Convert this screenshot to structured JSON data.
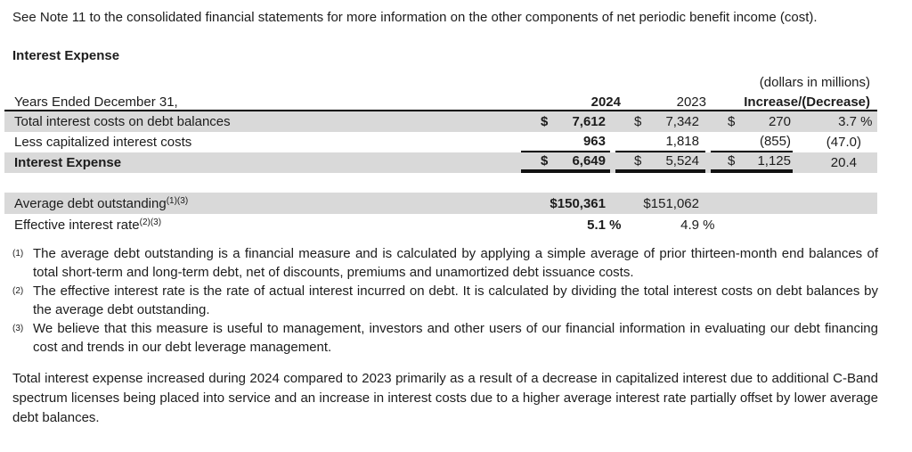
{
  "intro": {
    "text": "See Note 11 to the consolidated financial statements for more information on the other components of net periodic benefit income (cost)."
  },
  "section": {
    "heading": "Interest Expense"
  },
  "table": {
    "units_note": "(dollars in millions)",
    "header": {
      "label": "Years Ended December 31,",
      "y2024": "2024",
      "y2023": "2023",
      "change": "Increase/(Decrease)"
    },
    "rows": [
      {
        "label": "Total interest costs on debt balances",
        "s2024": "$",
        "v2024": "7,612",
        "s2023": "$",
        "v2023": "7,342",
        "schg": "$",
        "vchg": "270",
        "pct": "3.7",
        "pct_sfx": " %"
      },
      {
        "label": "Less capitalized interest costs",
        "s2024": "",
        "v2024": "963",
        "s2023": "",
        "v2023": "1,818",
        "schg": "",
        "vchg": "(855)",
        "pct": "(47.0",
        "pct_sfx": ")"
      },
      {
        "label": "Interest Expense",
        "s2024": "$",
        "v2024": "6,649",
        "s2023": "$",
        "v2023": "5,524",
        "schg": "$",
        "vchg": "1,125",
        "pct": "20.4",
        "pct_sfx": ""
      }
    ],
    "memo_rows": [
      {
        "label": "Average debt outstanding",
        "sup": "(1)(3)",
        "v2024": "$150,361",
        "v2024_sfx": "",
        "v2023": "$151,062",
        "v2023_sfx": ""
      },
      {
        "label": "Effective interest rate",
        "sup": "(2)(3)",
        "v2024": "5.1",
        "v2024_sfx": " %",
        "v2023": "4.9",
        "v2023_sfx": " %"
      }
    ]
  },
  "footnotes": [
    {
      "marker": "(1)",
      "text": "The average debt outstanding is a financial measure and is calculated by applying a simple average of prior thirteen-month end balances of total short-term and long-term debt, net of discounts, premiums and unamortized debt issuance costs."
    },
    {
      "marker": "(2)",
      "text": "The effective interest rate is the rate of actual interest incurred on debt. It is calculated by dividing the total interest costs on debt balances by the average debt outstanding."
    },
    {
      "marker": "(3)",
      "text": "We believe that this measure is useful to management, investors and other users of our financial information in evaluating our debt financing cost and trends in our debt leverage management."
    }
  ],
  "closing": {
    "text": "Total interest expense increased during 2024 compared to 2023 primarily as a result of a decrease in capitalized interest due to additional C-Band spectrum licenses being placed into service and an increase in interest costs due to a higher average interest rate partially offset by lower average debt balances."
  },
  "colors": {
    "row_shade": "#d9d9d9",
    "rule": "#000000",
    "text": "#1c1c1c"
  }
}
